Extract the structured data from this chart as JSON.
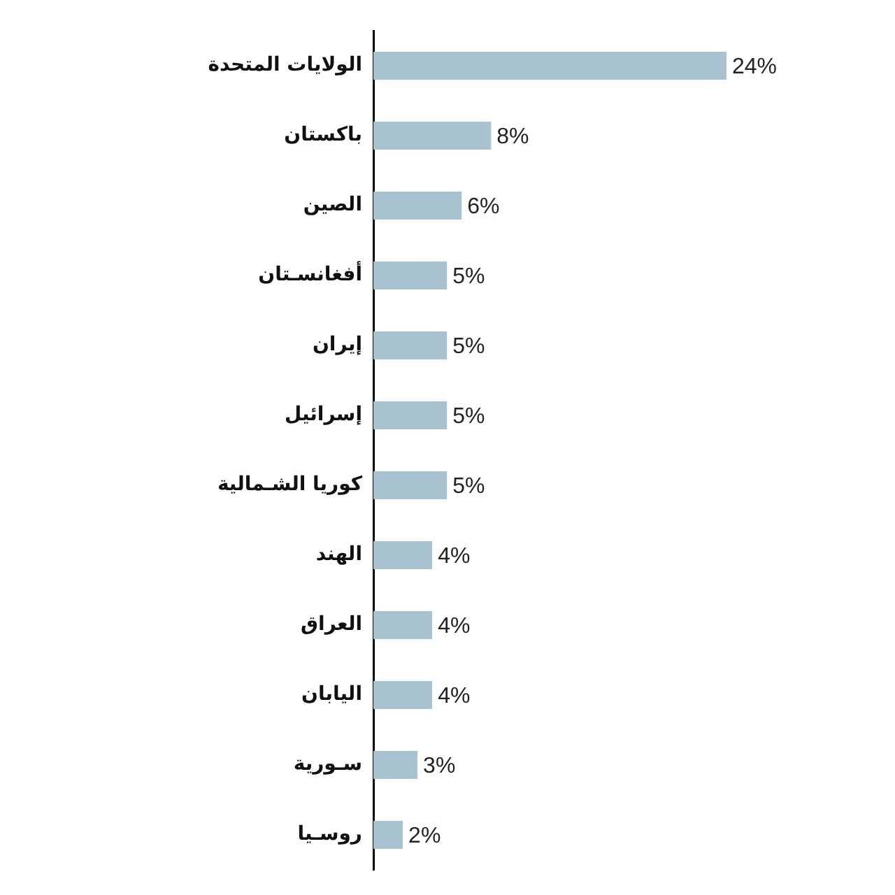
{
  "chart_data": {
    "type": "bar",
    "orientation": "horizontal",
    "categories": [
      "الولايات المتحدة",
      "باكستان",
      "الصين",
      "أفغانسـتان",
      "إيران",
      "إسرائيل",
      "كوريا الشـمالية",
      "الهند",
      "العراق",
      "اليابان",
      "سـورية",
      "روسـيا"
    ],
    "values": [
      24,
      8,
      6,
      5,
      5,
      5,
      5,
      4,
      4,
      4,
      3,
      2
    ],
    "value_labels": [
      "24%",
      "8%",
      "6%",
      "5%",
      "5%",
      "5%",
      "5%",
      "4%",
      "4%",
      "4%",
      "3%",
      "2%"
    ],
    "color": "#a9c2cf"
  }
}
